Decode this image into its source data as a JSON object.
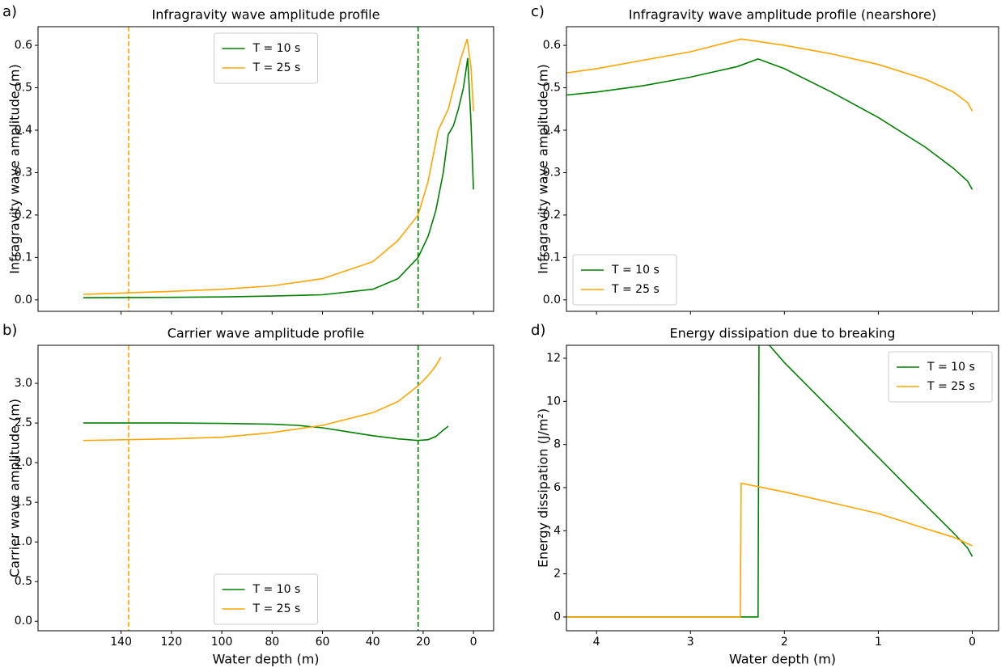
{
  "chart_data": [
    {
      "type": "line",
      "panel_label": "a)",
      "title": "Infragravity wave amplitude profile",
      "ylabel": "Infragravity wave amplitude (m)",
      "xlim": [
        173,
        -8
      ],
      "ylim": [
        -0.027,
        0.644
      ],
      "xticks": [
        140,
        120,
        100,
        80,
        60,
        40,
        20,
        0
      ],
      "show_xticklabels": false,
      "yticks": [
        {
          "value": 0,
          "label": "0.0"
        },
        {
          "value": 0.1,
          "label": "0.1"
        },
        {
          "value": 0.2,
          "label": "0.2"
        },
        {
          "value": 0.3,
          "label": "0.3"
        },
        {
          "value": 0.4,
          "label": "0.4"
        },
        {
          "value": 0.5,
          "label": "0.5"
        },
        {
          "value": 0.6,
          "label": "0.6"
        }
      ],
      "legend": "upper center",
      "vlines": [
        {
          "x": 137,
          "color": "#ffa500"
        },
        {
          "x": 22,
          "color": "#008000"
        }
      ],
      "series": [
        {
          "name": "T = 10 s",
          "color": "#008000",
          "x": [
            155,
            120,
            100,
            80,
            60,
            40,
            30,
            22,
            18,
            15,
            12,
            10,
            8,
            6,
            4,
            2.3,
            1,
            0
          ],
          "values": [
            0.005,
            0.006,
            0.007,
            0.009,
            0.012,
            0.025,
            0.05,
            0.1,
            0.15,
            0.21,
            0.3,
            0.39,
            0.41,
            0.45,
            0.5,
            0.57,
            0.42,
            0.26
          ]
        },
        {
          "name": "T = 25 s",
          "color": "#ffa500",
          "x": [
            155,
            120,
            100,
            80,
            60,
            40,
            30,
            22,
            18,
            14,
            10,
            7,
            5,
            2.5,
            1,
            0
          ],
          "values": [
            0.013,
            0.02,
            0.025,
            0.033,
            0.05,
            0.09,
            0.14,
            0.2,
            0.28,
            0.4,
            0.45,
            0.52,
            0.57,
            0.615,
            0.55,
            0.445
          ]
        }
      ]
    },
    {
      "type": "line",
      "panel_label": "b)",
      "title": "Carrier wave amplitude profile",
      "xlabel": "Water depth (m)",
      "ylabel": "Carrier wave amplitude (m)",
      "xlim": [
        173,
        -8
      ],
      "ylim": [
        -0.12,
        3.48
      ],
      "xticks": [
        140,
        120,
        100,
        80,
        60,
        40,
        20,
        0
      ],
      "show_xticklabels": true,
      "yticks": [
        {
          "value": 0,
          "label": "0.0"
        },
        {
          "value": 0.5,
          "label": "0.5"
        },
        {
          "value": 1,
          "label": "1.0"
        },
        {
          "value": 1.5,
          "label": "1.5"
        },
        {
          "value": 2,
          "label": "2.0"
        },
        {
          "value": 2.5,
          "label": "2.5"
        },
        {
          "value": 3,
          "label": "3.0"
        }
      ],
      "legend": "lower center",
      "vlines": [
        {
          "x": 137,
          "color": "#ffa500"
        },
        {
          "x": 22,
          "color": "#008000"
        }
      ],
      "series": [
        {
          "name": "T = 10 s",
          "color": "#008000",
          "x": [
            155,
            120,
            100,
            80,
            70,
            60,
            50,
            40,
            30,
            22,
            18,
            15,
            12,
            10
          ],
          "values": [
            2.5,
            2.5,
            2.495,
            2.485,
            2.47,
            2.44,
            2.39,
            2.34,
            2.3,
            2.28,
            2.29,
            2.33,
            2.41,
            2.46
          ]
        },
        {
          "name": "T = 25 s",
          "color": "#ffa500",
          "x": [
            155,
            120,
            100,
            80,
            60,
            40,
            30,
            22,
            18,
            15,
            13
          ],
          "values": [
            2.28,
            2.3,
            2.32,
            2.38,
            2.47,
            2.63,
            2.77,
            2.97,
            3.1,
            3.22,
            3.33
          ]
        }
      ]
    },
    {
      "type": "line",
      "panel_label": "c)",
      "title": "Infragravity wave amplitude profile (nearshore)",
      "ylabel": "Infragravity wave amplitude (m)",
      "xlim": [
        4.32,
        -0.28
      ],
      "ylim": [
        -0.027,
        0.644
      ],
      "xticks": [
        4,
        3,
        2,
        1,
        0
      ],
      "show_xticklabels": false,
      "yticks": [
        {
          "value": 0,
          "label": "0.0"
        },
        {
          "value": 0.1,
          "label": "0.1"
        },
        {
          "value": 0.2,
          "label": "0.2"
        },
        {
          "value": 0.3,
          "label": "0.3"
        },
        {
          "value": 0.4,
          "label": "0.4"
        },
        {
          "value": 0.5,
          "label": "0.5"
        },
        {
          "value": 0.6,
          "label": "0.6"
        }
      ],
      "legend": "lower left",
      "series": [
        {
          "name": "T = 10 s",
          "color": "#008000",
          "x": [
            4.32,
            4,
            3.5,
            3,
            2.5,
            2.28,
            2,
            1.5,
            1,
            0.5,
            0.2,
            0.05,
            0
          ],
          "values": [
            0.483,
            0.49,
            0.505,
            0.525,
            0.55,
            0.568,
            0.545,
            0.49,
            0.43,
            0.36,
            0.31,
            0.28,
            0.26
          ]
        },
        {
          "name": "T = 25 s",
          "color": "#ffa500",
          "x": [
            4.32,
            4,
            3.5,
            3,
            2.46,
            2,
            1.5,
            1,
            0.5,
            0.2,
            0.05,
            0
          ],
          "values": [
            0.535,
            0.545,
            0.565,
            0.585,
            0.615,
            0.6,
            0.58,
            0.555,
            0.52,
            0.49,
            0.465,
            0.445
          ]
        }
      ]
    },
    {
      "type": "line",
      "panel_label": "d)",
      "title": "Energy dissipation due to breaking",
      "xlabel": "Water depth (m)",
      "ylabel": "Energy dissipation (J/m²)",
      "xlim": [
        4.32,
        -0.28
      ],
      "ylim": [
        -0.64,
        12.6
      ],
      "xticks": [
        4,
        3,
        2,
        1,
        0
      ],
      "show_xticklabels": true,
      "yticks": [
        0,
        2,
        4,
        6,
        8,
        10,
        12
      ],
      "legend": "upper right",
      "series": [
        {
          "name": "T = 10 s",
          "color": "#008000",
          "x": [
            4.32,
            2.28,
            2.27,
            2,
            1.5,
            1,
            0.5,
            0.2,
            0.05,
            0
          ],
          "values": [
            0,
            0,
            13.15,
            11.8,
            9.6,
            7.4,
            5.2,
            3.9,
            3.2,
            2.8
          ]
        },
        {
          "name": "T = 25 s",
          "color": "#ffa500",
          "x": [
            4.32,
            2.47,
            2.46,
            2,
            1.5,
            1,
            0.5,
            0.2,
            0
          ],
          "values": [
            0,
            0,
            6.2,
            5.8,
            5.3,
            4.8,
            4.1,
            3.7,
            3.3
          ]
        }
      ]
    }
  ]
}
